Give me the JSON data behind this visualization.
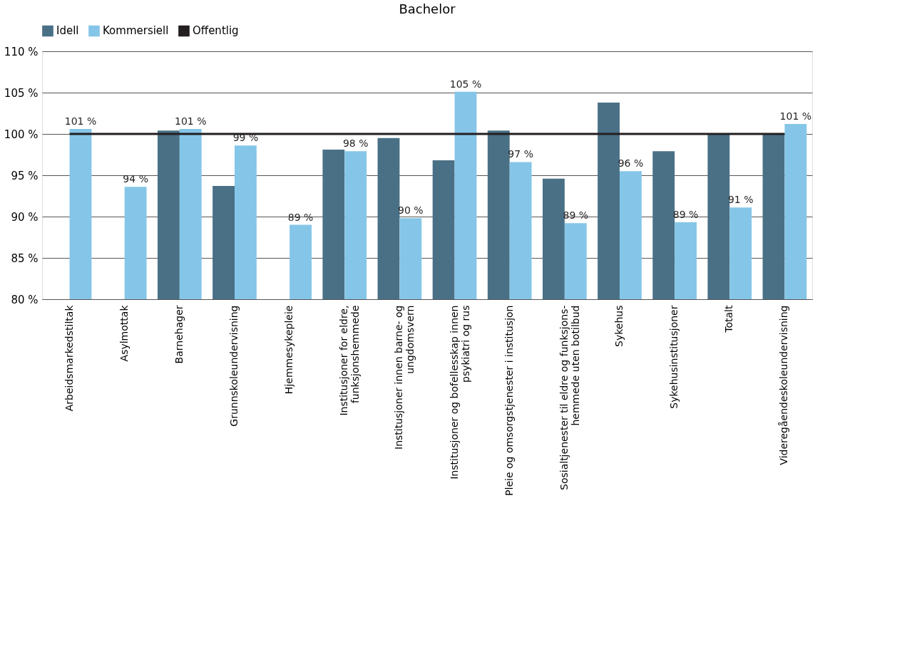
{
  "chart_data": {
    "type": "bar",
    "title": "Bachelor",
    "categories": [
      "Arbeidsmarkedstiltak",
      "Asylmottak",
      "Barnehager",
      "Grunnskoleundervisning",
      "Hjemmesykepleie",
      "Institusjoner for eldre,\nfunksjonshemmede",
      "Institusjoner innen barne- og\nungdomsvern",
      "Institusjoner og bofellesskap innen\npsykiatri og rus",
      "Pleie og omsorgstjenester i institusjon",
      "Sosialtjenester til eldre og funksjons-\nhemmede uten botilbud",
      "Sykehus",
      "Sykehusinstitusjoner",
      "Totalt",
      "Videregåendeskoleundervisning"
    ],
    "series": [
      {
        "name": "Idell",
        "color": "#4a7086",
        "values": [
          null,
          null,
          100.4,
          93.7,
          null,
          98.1,
          99.5,
          96.8,
          100.4,
          94.6,
          103.8,
          97.9,
          100.0,
          100.0
        ]
      },
      {
        "name": "Kommersiell",
        "color": "#85c6e8",
        "values": [
          100.6,
          93.6,
          100.6,
          98.6,
          89.0,
          97.9,
          89.8,
          105.1,
          96.6,
          89.2,
          95.5,
          89.3,
          91.1,
          101.2
        ],
        "value_labels": [
          "101 %",
          "94 %",
          "101 %",
          "99 %",
          "89 %",
          "98 %",
          "90 %",
          "105 %",
          "97 %",
          "89 %",
          "96 %",
          "89 %",
          "91 %",
          "101 %"
        ]
      },
      {
        "name": "Offentlig",
        "type": "line",
        "color": "#231f20",
        "values": [
          100,
          100,
          100,
          100,
          100,
          100,
          100,
          100,
          100,
          100,
          100,
          100,
          100,
          100
        ]
      }
    ],
    "ylim": [
      80,
      110
    ],
    "yticks": [
      {
        "value": 80,
        "label": "80 %"
      },
      {
        "value": 85,
        "label": "85 %"
      },
      {
        "value": 90,
        "label": "90 %"
      },
      {
        "value": 95,
        "label": "95 %"
      },
      {
        "value": 100,
        "label": "100 %"
      },
      {
        "value": 105,
        "label": "105 %"
      },
      {
        "value": 110,
        "label": "110 %"
      }
    ],
    "grid": "y",
    "legend": "top"
  }
}
